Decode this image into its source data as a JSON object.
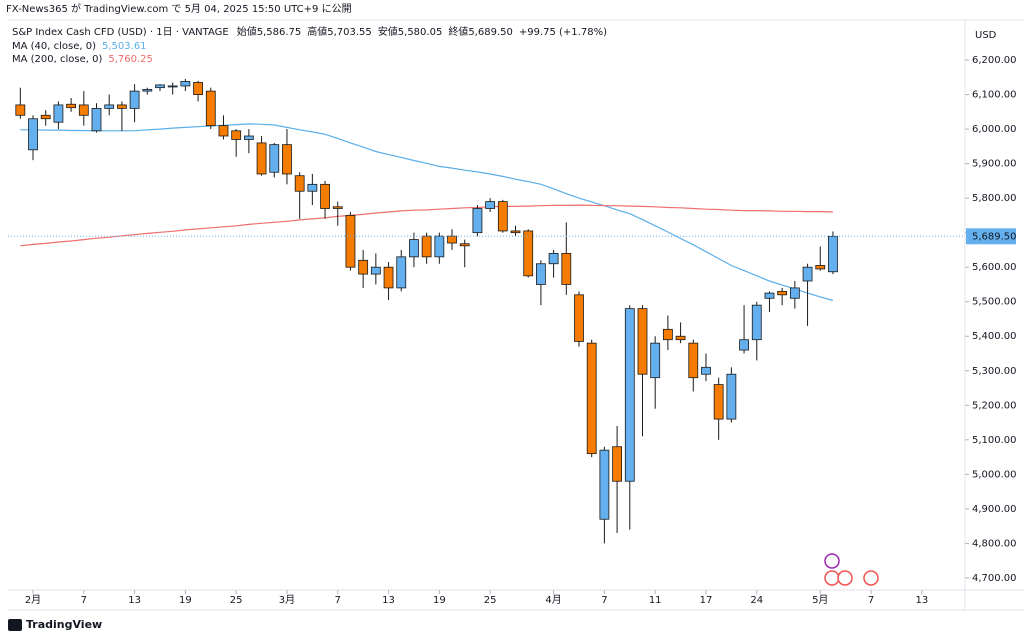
{
  "header": "FX-News365 が TradingView.com で 5月 04, 2025 15:50 UTC+9 に公開",
  "footer": "TradingView",
  "chart_data": {
    "type": "candlestick",
    "title": "S&P Index Cash CFD (USD) · 1日 · VANTAGE",
    "ohlc_legend": [
      {
        "label": "始値",
        "value": "5,586.75"
      },
      {
        "label": "高値",
        "value": "5,703.55"
      },
      {
        "label": "安値",
        "value": "5,580.05"
      },
      {
        "label": "終値",
        "value": "5,689.50"
      }
    ],
    "change": "+99.75 (+1.78%)",
    "currency": "USD",
    "last_price_label": "5,689.50",
    "up_color": "#64b0ef",
    "down_color": "#f57c00",
    "ylim": [
      4665,
      6316
    ],
    "xlim": [
      -0.97,
      74.4
    ],
    "yticks": [
      {
        "value": 4700,
        "label": "4,700.00"
      },
      {
        "value": 4800,
        "label": "4,800.00"
      },
      {
        "value": 4900,
        "label": "4,900.00"
      },
      {
        "value": 5000,
        "label": "5,000.00"
      },
      {
        "value": 5100,
        "label": "5,100.00"
      },
      {
        "value": 5200,
        "label": "5,200.00"
      },
      {
        "value": 5300,
        "label": "5,300.00"
      },
      {
        "value": 5400,
        "label": "5,400.00"
      },
      {
        "value": 5500,
        "label": "5,500.00"
      },
      {
        "value": 5600,
        "label": "5,600.00"
      },
      {
        "value": 5700,
        "label": "5,700.00"
      },
      {
        "value": 5800,
        "label": "5,800.00"
      },
      {
        "value": 5900,
        "label": "5,900.00"
      },
      {
        "value": 6000,
        "label": "6,000.00"
      },
      {
        "value": 6100,
        "label": "6,100.00"
      },
      {
        "value": 6200,
        "label": "6,200.00"
      }
    ],
    "xticks": [
      {
        "value": 1,
        "label": "2月"
      },
      {
        "value": 5,
        "label": "7"
      },
      {
        "value": 9,
        "label": "13"
      },
      {
        "value": 13,
        "label": "19"
      },
      {
        "value": 17,
        "label": "25"
      },
      {
        "value": 21,
        "label": "3月"
      },
      {
        "value": 25,
        "label": "7"
      },
      {
        "value": 29,
        "label": "13"
      },
      {
        "value": 33,
        "label": "19"
      },
      {
        "value": 37,
        "label": "25"
      },
      {
        "value": 42,
        "label": "4月"
      },
      {
        "value": 46,
        "label": "7"
      },
      {
        "value": 50,
        "label": "11"
      },
      {
        "value": 54,
        "label": "17"
      },
      {
        "value": 58,
        "label": "24"
      },
      {
        "value": 63,
        "label": "5月"
      },
      {
        "value": 67,
        "label": "7"
      },
      {
        "value": 71,
        "label": "13"
      }
    ],
    "candles": [
      {
        "open": 6070,
        "high": 6120,
        "low": 6030,
        "close": 6040
      },
      {
        "open": 5940,
        "high": 6040,
        "low": 5910,
        "close": 6030
      },
      {
        "open": 6040,
        "high": 6055,
        "low": 6010,
        "close": 6030
      },
      {
        "open": 6020,
        "high": 6080,
        "low": 6000,
        "close": 6070
      },
      {
        "open": 6072,
        "high": 6090,
        "low": 6050,
        "close": 6062
      },
      {
        "open": 6070,
        "high": 6110,
        "low": 6010,
        "close": 6040
      },
      {
        "open": 5995,
        "high": 6075,
        "low": 5990,
        "close": 6060
      },
      {
        "open": 6060,
        "high": 6100,
        "low": 6040,
        "close": 6070
      },
      {
        "open": 6070,
        "high": 6080,
        "low": 5995,
        "close": 6060
      },
      {
        "open": 6060,
        "high": 6130,
        "low": 6020,
        "close": 6110
      },
      {
        "open": 6110,
        "high": 6120,
        "low": 6100,
        "close": 6115
      },
      {
        "open": 6120,
        "high": 6130,
        "low": 6110,
        "close": 6128
      },
      {
        "open": 6125,
        "high": 6135,
        "low": 6100,
        "close": 6125
      },
      {
        "open": 6125,
        "high": 6145,
        "low": 6110,
        "close": 6138
      },
      {
        "open": 6135,
        "high": 6140,
        "low": 6080,
        "close": 6100
      },
      {
        "open": 6110,
        "high": 6120,
        "low": 6000,
        "close": 6010
      },
      {
        "open": 6010,
        "high": 6040,
        "low": 5970,
        "close": 5980
      },
      {
        "open": 5995,
        "high": 6000,
        "low": 5920,
        "close": 5970
      },
      {
        "open": 5970,
        "high": 6000,
        "low": 5930,
        "close": 5980
      },
      {
        "open": 5960,
        "high": 5980,
        "low": 5865,
        "close": 5870
      },
      {
        "open": 5875,
        "high": 5960,
        "low": 5860,
        "close": 5955
      },
      {
        "open": 5955,
        "high": 6000,
        "low": 5840,
        "close": 5870
      },
      {
        "open": 5865,
        "high": 5875,
        "low": 5740,
        "close": 5820
      },
      {
        "open": 5820,
        "high": 5870,
        "low": 5780,
        "close": 5840
      },
      {
        "open": 5840,
        "high": 5850,
        "low": 5740,
        "close": 5770
      },
      {
        "open": 5775,
        "high": 5790,
        "low": 5720,
        "close": 5770
      },
      {
        "open": 5750,
        "high": 5760,
        "low": 5590,
        "close": 5600
      },
      {
        "open": 5620,
        "high": 5650,
        "low": 5540,
        "close": 5580
      },
      {
        "open": 5580,
        "high": 5640,
        "low": 5550,
        "close": 5600
      },
      {
        "open": 5600,
        "high": 5615,
        "low": 5505,
        "close": 5540
      },
      {
        "open": 5540,
        "high": 5650,
        "low": 5530,
        "close": 5630
      },
      {
        "open": 5630,
        "high": 5700,
        "low": 5600,
        "close": 5680
      },
      {
        "open": 5690,
        "high": 5700,
        "low": 5610,
        "close": 5630
      },
      {
        "open": 5630,
        "high": 5700,
        "low": 5610,
        "close": 5690
      },
      {
        "open": 5690,
        "high": 5710,
        "low": 5650,
        "close": 5670
      },
      {
        "open": 5668,
        "high": 5680,
        "low": 5600,
        "close": 5662
      },
      {
        "open": 5700,
        "high": 5780,
        "low": 5690,
        "close": 5770
      },
      {
        "open": 5770,
        "high": 5800,
        "low": 5760,
        "close": 5790
      },
      {
        "open": 5790,
        "high": 5795,
        "low": 5700,
        "close": 5705
      },
      {
        "open": 5705,
        "high": 5720,
        "low": 5690,
        "close": 5700
      },
      {
        "open": 5705,
        "high": 5710,
        "low": 5570,
        "close": 5575
      },
      {
        "open": 5550,
        "high": 5620,
        "low": 5490,
        "close": 5610
      },
      {
        "open": 5610,
        "high": 5650,
        "low": 5570,
        "close": 5640
      },
      {
        "open": 5640,
        "high": 5730,
        "low": 5520,
        "close": 5550
      },
      {
        "open": 5520,
        "high": 5530,
        "low": 5370,
        "close": 5385
      },
      {
        "open": 5380,
        "high": 5390,
        "low": 5050,
        "close": 5060
      },
      {
        "open": 4870,
        "high": 5080,
        "low": 4800,
        "close": 5070
      },
      {
        "open": 5080,
        "high": 5140,
        "low": 4830,
        "close": 4980
      },
      {
        "open": 4980,
        "high": 5490,
        "low": 4840,
        "close": 5480
      },
      {
        "open": 5480,
        "high": 5490,
        "low": 5110,
        "close": 5290
      },
      {
        "open": 5280,
        "high": 5400,
        "low": 5190,
        "close": 5380
      },
      {
        "open": 5420,
        "high": 5460,
        "low": 5360,
        "close": 5390
      },
      {
        "open": 5400,
        "high": 5440,
        "low": 5380,
        "close": 5390
      },
      {
        "open": 5380,
        "high": 5390,
        "low": 5240,
        "close": 5280
      },
      {
        "open": 5290,
        "high": 5350,
        "low": 5270,
        "close": 5310
      },
      {
        "open": 5260,
        "high": 5280,
        "low": 5100,
        "close": 5160
      },
      {
        "open": 5160,
        "high": 5310,
        "low": 5150,
        "close": 5290
      },
      {
        "open": 5360,
        "high": 5490,
        "low": 5350,
        "close": 5390
      },
      {
        "open": 5390,
        "high": 5500,
        "low": 5330,
        "close": 5490
      },
      {
        "open": 5510,
        "high": 5530,
        "low": 5470,
        "close": 5525
      },
      {
        "open": 5530,
        "high": 5540,
        "low": 5490,
        "close": 5520
      },
      {
        "open": 5510,
        "high": 5560,
        "low": 5480,
        "close": 5540
      },
      {
        "open": 5560,
        "high": 5610,
        "low": 5430,
        "close": 5600
      },
      {
        "open": 5605,
        "high": 5660,
        "low": 5590,
        "close": 5595
      },
      {
        "open": 5586.75,
        "high": 5703.55,
        "low": 5580.05,
        "close": 5689.5
      }
    ],
    "series": [
      {
        "name": "MA (40, close, 0)",
        "value_label": "5,503.61",
        "color": "#5aaee8",
        "values": [
          5998,
          5998,
          5997,
          5997,
          5996,
          5996,
          5995,
          5995,
          5995,
          5995,
          5998,
          6000,
          6003,
          6005,
          6007,
          6009,
          6011,
          6013,
          6015,
          6014,
          6012,
          6005,
          5998,
          5992,
          5985,
          5973,
          5960,
          5948,
          5935,
          5926,
          5918,
          5909,
          5901,
          5892,
          5887,
          5881,
          5876,
          5870,
          5863,
          5855,
          5848,
          5840,
          5827,
          5813,
          5800,
          5789,
          5778,
          5766,
          5755,
          5738,
          5720,
          5702,
          5683,
          5665,
          5645,
          5625,
          5605,
          5590,
          5575,
          5560,
          5548,
          5537,
          5525,
          5514,
          5503.61
        ]
      },
      {
        "name": "MA (200, close, 0)",
        "value_label": "5,760.25",
        "color": "#ef6f6c",
        "values": [
          5662,
          5666,
          5669,
          5673,
          5676,
          5680,
          5684,
          5687,
          5691,
          5694,
          5698,
          5701,
          5704,
          5708,
          5711,
          5714,
          5717,
          5720,
          5724,
          5727,
          5730,
          5733,
          5737,
          5740,
          5743,
          5747,
          5750,
          5753,
          5757,
          5760,
          5763,
          5765,
          5766,
          5768,
          5770,
          5772,
          5773,
          5775,
          5776,
          5776,
          5777,
          5778,
          5779,
          5779,
          5780,
          5779,
          5778,
          5778,
          5777,
          5776,
          5775,
          5773,
          5772,
          5770,
          5768,
          5767,
          5765,
          5764,
          5764,
          5763,
          5762,
          5762,
          5761,
          5761,
          5760.25
        ]
      }
    ]
  }
}
